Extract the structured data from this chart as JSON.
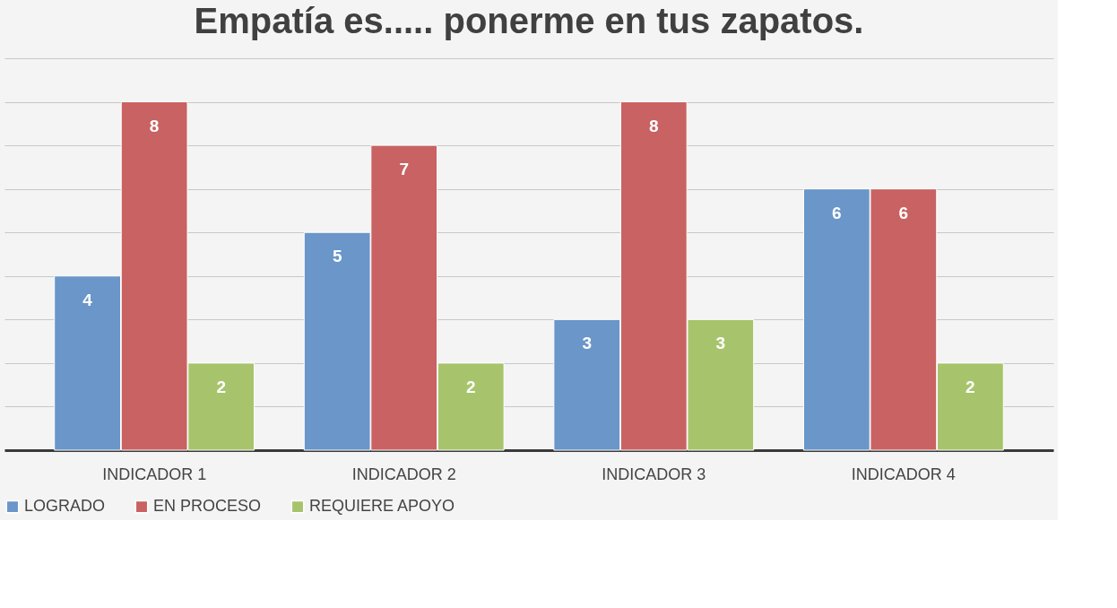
{
  "chart_data": {
    "type": "bar",
    "title": "Empatía es..... ponerme en tus zapatos.",
    "categories": [
      "INDICADOR 1",
      "INDICADOR 2",
      "INDICADOR 3",
      "INDICADOR 4"
    ],
    "series": [
      {
        "name": "LOGRADO",
        "color": "#6a96c9",
        "values": [
          4,
          5,
          3,
          6
        ]
      },
      {
        "name": "EN PROCESO",
        "color": "#c96262",
        "values": [
          8,
          7,
          8,
          6
        ]
      },
      {
        "name": "REQUIERE APOYO",
        "color": "#a7c46c",
        "values": [
          2,
          2,
          3,
          2
        ]
      }
    ],
    "ylim": [
      0,
      9
    ],
    "yticks": [
      {
        "value": 0,
        "label": null
      },
      {
        "value": 1,
        "label": null
      },
      {
        "value": 2,
        "label": null
      },
      {
        "value": 3,
        "label": null
      },
      {
        "value": 4,
        "label": null
      },
      {
        "value": 5,
        "label": null
      },
      {
        "value": 6,
        "label": null
      },
      {
        "value": 7,
        "label": null
      },
      {
        "value": 8,
        "label": null
      },
      {
        "value": 9,
        "label": null
      }
    ],
    "tick_labels": "x",
    "grid": "y",
    "legend": "bottom",
    "data_labels": true
  }
}
